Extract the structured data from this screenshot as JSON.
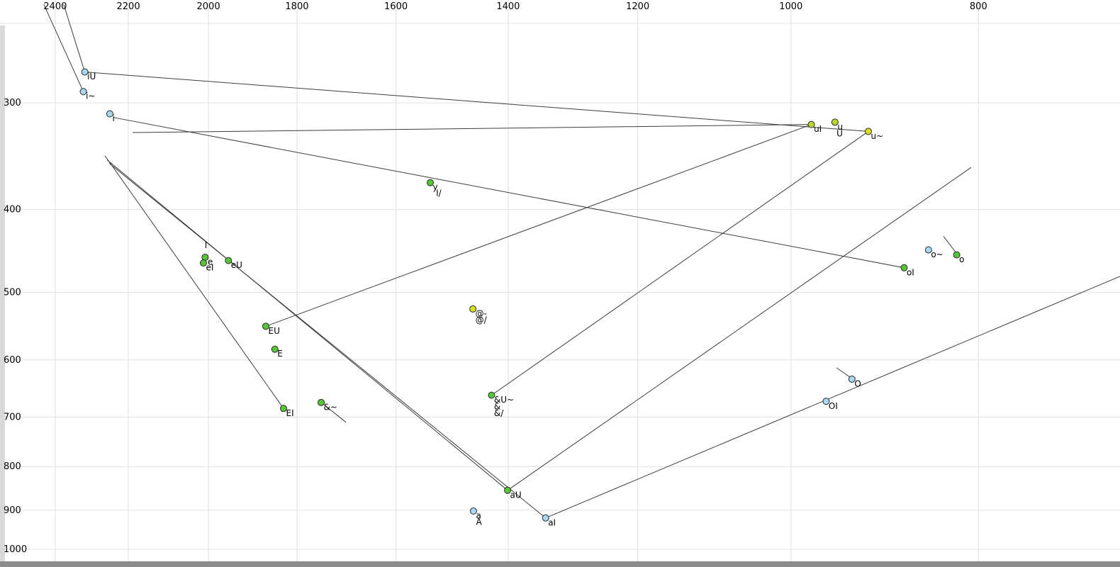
{
  "chart_data": {
    "type": "scatter",
    "description": "Vowel formant chart (F2 horizontal reversed log scale, F1 vertical log scale) with vowel points and diphthong trajectory lines",
    "x_axis": {
      "ticks": [
        2400,
        2200,
        2000,
        1800,
        1600,
        1400,
        1200,
        1000,
        800
      ],
      "scale": "log",
      "reversed": true,
      "left_value": 2563,
      "right_value": 676
    },
    "y_axis": {
      "ticks": [
        300,
        400,
        500,
        600,
        700,
        800,
        900,
        1000
      ],
      "scale": "log",
      "top_value": 227.3,
      "bottom_value": 1049
    },
    "grid": true,
    "colors": {
      "blue": "#a9d7f2",
      "green": "#56c636",
      "yellowgreen": "#b9d62a",
      "yellow": "#d9dd1e",
      "grid": "#e0e0e0",
      "line": "#3c3c3c",
      "marker_stroke": "#2a2a2a",
      "text": "#000000",
      "edge_light": "#d9d9d9",
      "edge_dark": "#8c8c8c"
    },
    "points": [
      {
        "label": "iU",
        "f2": 2317,
        "f1": 276,
        "color": "blue"
      },
      {
        "label": "i~",
        "f2": 2321,
        "f1": 291,
        "color": "blue"
      },
      {
        "label": "i",
        "f2": 2249,
        "f1": 309,
        "color": "blue"
      },
      {
        "label": "uI",
        "f2": 976,
        "f1": 318,
        "color": "yellowgreen"
      },
      {
        "label": "u",
        "f2": 949,
        "f1": 316,
        "color": "yellowgreen"
      },
      {
        "label": "U",
        "f2": 950,
        "f1": 322,
        "color": "yellowgreen",
        "marker": false
      },
      {
        "label": "u~",
        "f2": 912,
        "f1": 324,
        "color": "yellow"
      },
      {
        "label": "y",
        "f2": 1536,
        "f1": 372,
        "color": "green"
      },
      {
        "label": "I/",
        "f2": 1530,
        "f1": 378,
        "color": "green",
        "marker": false
      },
      {
        "label": "I",
        "f2": 2015,
        "f1": 435,
        "color": "green",
        "marker": false
      },
      {
        "label": "e",
        "f2": 2008,
        "f1": 455,
        "color": "green"
      },
      {
        "label": "eI",
        "f2": 2012,
        "f1": 462,
        "color": "green"
      },
      {
        "label": "eU",
        "f2": 1953,
        "f1": 459,
        "color": "green"
      },
      {
        "label": "o~",
        "f2": 849,
        "f1": 446,
        "color": "blue"
      },
      {
        "label": "o",
        "f2": 821,
        "f1": 452,
        "color": "green"
      },
      {
        "label": "oI",
        "f2": 874,
        "f1": 468,
        "color": "green"
      },
      {
        "label": "@-",
        "f2": 1460,
        "f1": 523,
        "color": "yellow"
      },
      {
        "label": "@/",
        "f2": 1460,
        "f1": 532,
        "color": "yellow",
        "marker": false
      },
      {
        "label": "EU",
        "f2": 1868,
        "f1": 548,
        "color": "green"
      },
      {
        "label": "E",
        "f2": 1848,
        "f1": 583,
        "color": "green"
      },
      {
        "label": "O",
        "f2": 930,
        "f1": 632,
        "color": "blue"
      },
      {
        "label": "OI",
        "f2": 959,
        "f1": 671,
        "color": "blue"
      },
      {
        "label": "EI",
        "f2": 1829,
        "f1": 684,
        "color": "green"
      },
      {
        "label": "&~",
        "f2": 1749,
        "f1": 673,
        "color": "green"
      },
      {
        "label": "&U~",
        "f2": 1428,
        "f1": 660,
        "color": "green"
      },
      {
        "label": "&",
        "f2": 1428,
        "f1": 672,
        "color": "green",
        "marker": false
      },
      {
        "label": "&/",
        "f2": 1428,
        "f1": 684,
        "color": "green",
        "marker": false
      },
      {
        "label": "aU",
        "f2": 1401,
        "f1": 853,
        "color": "green"
      },
      {
        "label": "a",
        "f2": 1459,
        "f1": 902,
        "color": "blue"
      },
      {
        "label": "A",
        "f2": 1459,
        "f1": 918,
        "color": "blue",
        "marker": false
      },
      {
        "label": "aI",
        "f2": 1339,
        "f1": 919,
        "color": "blue"
      }
    ],
    "segments": [
      [
        2433,
        230,
        2321,
        291
      ],
      [
        2376,
        230,
        2317,
        276
      ],
      [
        2317,
        276,
        912,
        324
      ],
      [
        2189,
        325,
        976,
        318
      ],
      [
        2262,
        346,
        1829,
        684
      ],
      [
        2256,
        350,
        1401,
        853
      ],
      [
        2251,
        353,
        1339,
        919
      ],
      [
        1868,
        548,
        976,
        318
      ],
      [
        1401,
        853,
        807,
        357
      ],
      [
        1428,
        660,
        912,
        324
      ],
      [
        1339,
        919,
        676,
        479
      ],
      [
        2240,
        312,
        874,
        468
      ],
      [
        834,
        430,
        820,
        452
      ],
      [
        947,
        613,
        930,
        631
      ],
      [
        1753,
        670,
        1698,
        710
      ]
    ]
  }
}
